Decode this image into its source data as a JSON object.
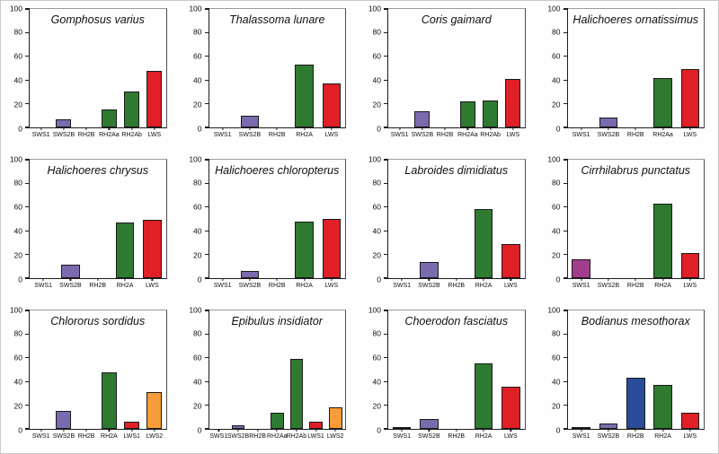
{
  "figure": {
    "panel_count": 12,
    "grid": {
      "rows": 3,
      "cols": 4
    },
    "background": "#fefefe"
  },
  "axis": {
    "ylim": [
      0,
      100
    ],
    "y_ticks": [
      0,
      20,
      40,
      60,
      80,
      100
    ],
    "y_tick_labels": [
      "0",
      "20",
      "40",
      "60",
      "80",
      "100"
    ]
  },
  "palette": {
    "sws1_magenta": "#A23C8C",
    "sws2b_purple": "#7A6BAE",
    "rh2b_blue": "#2A4C99",
    "rh2_green": "#2F7A31",
    "lws_red": "#E01F26",
    "lws2_orange": "#F79C38",
    "bar_outline": "#1A1A1A"
  },
  "chart_data": [
    {
      "type": "bar",
      "title": "Gomphosus varius",
      "ylim": [
        0,
        100
      ],
      "categories": [
        "SWS1",
        "SWS2B",
        "RH2B",
        "RH2Aa",
        "RH2Ab",
        "LWS"
      ],
      "values": [
        0,
        6.5,
        0,
        15.5,
        30,
        48
      ],
      "colors": [
        "#A23C8C",
        "#7A6BAE",
        "#2A4C99",
        "#2F7A31",
        "#2F7A31",
        "#E01F26"
      ]
    },
    {
      "type": "bar",
      "title": "Thalassoma lunare",
      "ylim": [
        0,
        100
      ],
      "categories": [
        "SWS1",
        "SWS2B",
        "RH2B",
        "RH2A",
        "LWS"
      ],
      "values": [
        0,
        10,
        0,
        53,
        37
      ],
      "colors": [
        "#A23C8C",
        "#7A6BAE",
        "#2A4C99",
        "#2F7A31",
        "#E01F26"
      ]
    },
    {
      "type": "bar",
      "title": "Coris gaimard",
      "ylim": [
        0,
        100
      ],
      "categories": [
        "SWS1",
        "SWS2B",
        "RH2B",
        "RH2Aa",
        "RH2Ab",
        "LWS"
      ],
      "values": [
        0,
        14,
        0,
        22,
        23,
        41
      ],
      "colors": [
        "#A23C8C",
        "#7A6BAE",
        "#2A4C99",
        "#2F7A31",
        "#2F7A31",
        "#E01F26"
      ]
    },
    {
      "type": "bar",
      "title": "Halichoeres ornatissimus",
      "ylim": [
        0,
        100
      ],
      "categories": [
        "SWS1",
        "SWS2B",
        "RH2B",
        "RH2Aa",
        "LWS"
      ],
      "values": [
        0,
        8,
        0,
        42,
        49
      ],
      "colors": [
        "#A23C8C",
        "#7A6BAE",
        "#2A4C99",
        "#2F7A31",
        "#E01F26"
      ]
    },
    {
      "type": "bar",
      "title": "Halichoeres chrysus",
      "ylim": [
        0,
        100
      ],
      "categories": [
        "SWS1",
        "SWS2B",
        "RH2B",
        "RH2A",
        "LWS"
      ],
      "values": [
        0,
        11,
        0,
        47,
        49.5
      ],
      "colors": [
        "#A23C8C",
        "#7A6BAE",
        "#2A4C99",
        "#2F7A31",
        "#E01F26"
      ]
    },
    {
      "type": "bar",
      "title": "Halichoeres chloropterus",
      "ylim": [
        0,
        100
      ],
      "categories": [
        "SWS1",
        "SWS2B",
        "RH2B",
        "RH2A",
        "LWS"
      ],
      "values": [
        0,
        6,
        0,
        48,
        50
      ],
      "colors": [
        "#A23C8C",
        "#7A6BAE",
        "#2A4C99",
        "#2F7A31",
        "#E01F26"
      ]
    },
    {
      "type": "bar",
      "title": "Labroides dimidiatus",
      "ylim": [
        0,
        100
      ],
      "categories": [
        "SWS1",
        "SWS2B",
        "RH2B",
        "RH2A",
        "LWS"
      ],
      "values": [
        0,
        14,
        0,
        58,
        28.5
      ],
      "colors": [
        "#A23C8C",
        "#7A6BAE",
        "#2A4C99",
        "#2F7A31",
        "#E01F26"
      ]
    },
    {
      "type": "bar",
      "title": "Cirrhilabrus punctatus",
      "ylim": [
        0,
        100
      ],
      "categories": [
        "SWS1",
        "SWS2B",
        "RH2B",
        "RH2A",
        "LWS"
      ],
      "values": [
        16,
        0,
        0,
        63,
        21.5
      ],
      "colors": [
        "#A23C8C",
        "#7A6BAE",
        "#2A4C99",
        "#2F7A31",
        "#E01F26"
      ]
    },
    {
      "type": "bar",
      "title": "Chlororus sordidus",
      "ylim": [
        0,
        100
      ],
      "categories": [
        "SWS1",
        "SWS2B",
        "RH2B",
        "RH2A",
        "LWS1",
        "LWS2"
      ],
      "values": [
        0,
        15,
        0,
        48,
        6,
        31
      ],
      "colors": [
        "#A23C8C",
        "#7A6BAE",
        "#2A4C99",
        "#2F7A31",
        "#E01F26",
        "#F79C38"
      ]
    },
    {
      "type": "bar",
      "title": "Epibulus insidiator",
      "ylim": [
        0,
        100
      ],
      "categories": [
        "SWS1",
        "SWS2B",
        "RH2B",
        "RH2Aa",
        "RH2Ab",
        "LWS1",
        "LWS2"
      ],
      "values": [
        0,
        3,
        0,
        14,
        59,
        6,
        18.5
      ],
      "colors": [
        "#A23C8C",
        "#7A6BAE",
        "#2A4C99",
        "#2F7A31",
        "#2F7A31",
        "#E01F26",
        "#F79C38"
      ]
    },
    {
      "type": "bar",
      "title": "Choerodon fasciatus",
      "ylim": [
        0,
        100
      ],
      "categories": [
        "SWS1",
        "SWS2B",
        "RH2B",
        "RH2A",
        "LWS"
      ],
      "values": [
        1.5,
        8,
        0,
        55,
        35.5
      ],
      "colors": [
        "#A23C8C",
        "#7A6BAE",
        "#2A4C99",
        "#2F7A31",
        "#E01F26"
      ]
    },
    {
      "type": "bar",
      "title": "Bodianus mesothorax",
      "ylim": [
        0,
        100
      ],
      "categories": [
        "SWS1",
        "SWS2B",
        "RH2B",
        "RH2A",
        "LWS"
      ],
      "values": [
        1,
        4.5,
        43,
        37,
        14
      ],
      "colors": [
        "#A23C8C",
        "#7A6BAE",
        "#2A4C99",
        "#2F7A31",
        "#E01F26"
      ]
    }
  ]
}
